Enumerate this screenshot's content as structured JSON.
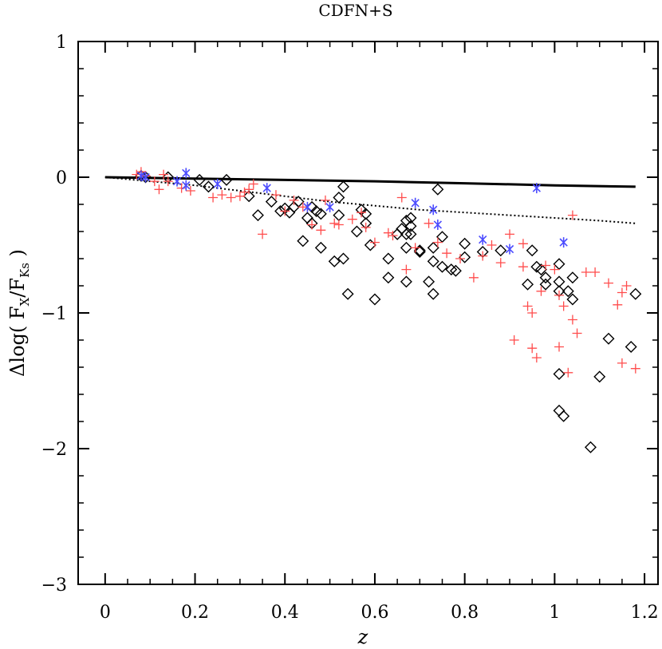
{
  "chart_data": {
    "type": "scatter",
    "title": "CDFN+S",
    "xlabel": "z",
    "ylabel": {
      "prefix": "Δlog( F",
      "sub1": "X",
      "mid": "/F",
      "sub2": "Ks",
      "suffix": " )"
    },
    "xlim": [
      -0.06,
      1.23
    ],
    "ylim": [
      -3,
      1
    ],
    "x_ticks": [
      {
        "value": 0,
        "label": "0"
      },
      {
        "value": 0.2,
        "label": "0.2"
      },
      {
        "value": 0.4,
        "label": "0.4"
      },
      {
        "value": 0.6,
        "label": "0.6"
      },
      {
        "value": 0.8,
        "label": "0.8"
      },
      {
        "value": 1.0,
        "label": "1"
      },
      {
        "value": 1.2,
        "label": "1.2"
      }
    ],
    "y_ticks": [
      {
        "value": 1,
        "label": "1"
      },
      {
        "value": 0,
        "label": "0"
      },
      {
        "value": -1,
        "label": "−1"
      },
      {
        "value": -2,
        "label": "−2"
      },
      {
        "value": -3,
        "label": "−3"
      }
    ],
    "grid": false,
    "legend": "none",
    "curves": [
      {
        "style": "solid",
        "color": "#000000",
        "x": [
          0,
          0.2,
          0.4,
          0.6,
          0.8,
          1.0,
          1.18
        ],
        "y": [
          0,
          -0.01,
          -0.02,
          -0.03,
          -0.045,
          -0.06,
          -0.07
        ]
      },
      {
        "style": "dotted",
        "color": "#000000",
        "x": [
          0,
          0.1,
          0.2,
          0.3,
          0.4,
          0.5,
          0.6,
          0.7,
          0.8,
          0.9,
          1.0,
          1.1,
          1.18
        ],
        "y": [
          0,
          -0.03,
          -0.06,
          -0.1,
          -0.14,
          -0.18,
          -0.21,
          -0.24,
          -0.26,
          -0.28,
          -0.3,
          -0.32,
          -0.34
        ]
      }
    ],
    "series": [
      {
        "marker": "diamond",
        "color": "#000000",
        "points": [
          [
            0.08,
            0.01
          ],
          [
            0.09,
            0.0
          ],
          [
            0.14,
            0.0
          ],
          [
            0.21,
            -0.02
          ],
          [
            0.23,
            -0.07
          ],
          [
            0.27,
            -0.02
          ],
          [
            0.32,
            -0.14
          ],
          [
            0.34,
            -0.28
          ],
          [
            0.37,
            -0.18
          ],
          [
            0.39,
            -0.25
          ],
          [
            0.4,
            -0.23
          ],
          [
            0.41,
            -0.26
          ],
          [
            0.42,
            -0.22
          ],
          [
            0.43,
            -0.18
          ],
          [
            0.44,
            -0.47
          ],
          [
            0.45,
            -0.3
          ],
          [
            0.46,
            -0.22
          ],
          [
            0.46,
            -0.34
          ],
          [
            0.47,
            -0.25
          ],
          [
            0.48,
            -0.27
          ],
          [
            0.48,
            -0.52
          ],
          [
            0.51,
            -0.62
          ],
          [
            0.52,
            -0.28
          ],
          [
            0.52,
            -0.15
          ],
          [
            0.53,
            -0.07
          ],
          [
            0.53,
            -0.6
          ],
          [
            0.54,
            -0.86
          ],
          [
            0.56,
            -0.4
          ],
          [
            0.57,
            -0.24
          ],
          [
            0.58,
            -0.27
          ],
          [
            0.58,
            -0.34
          ],
          [
            0.59,
            -0.5
          ],
          [
            0.6,
            -0.9
          ],
          [
            0.63,
            -0.6
          ],
          [
            0.63,
            -0.74
          ],
          [
            0.65,
            -0.42
          ],
          [
            0.66,
            -0.38
          ],
          [
            0.67,
            -0.32
          ],
          [
            0.67,
            -0.42
          ],
          [
            0.67,
            -0.52
          ],
          [
            0.67,
            -0.77
          ],
          [
            0.68,
            -0.3
          ],
          [
            0.68,
            -0.36
          ],
          [
            0.68,
            -0.42
          ],
          [
            0.7,
            -0.54
          ],
          [
            0.7,
            -0.55
          ],
          [
            0.72,
            -0.77
          ],
          [
            0.73,
            -0.52
          ],
          [
            0.73,
            -0.62
          ],
          [
            0.73,
            -0.86
          ],
          [
            0.74,
            -0.09
          ],
          [
            0.75,
            -0.44
          ],
          [
            0.75,
            -0.66
          ],
          [
            0.77,
            -0.68
          ],
          [
            0.78,
            -0.69
          ],
          [
            0.8,
            -0.49
          ],
          [
            0.8,
            -0.59
          ],
          [
            0.84,
            -0.55
          ],
          [
            0.88,
            -0.54
          ],
          [
            0.94,
            -0.79
          ],
          [
            0.95,
            -0.54
          ],
          [
            0.96,
            -0.66
          ],
          [
            0.97,
            -0.68
          ],
          [
            0.98,
            -0.74
          ],
          [
            0.98,
            -0.79
          ],
          [
            1.01,
            -0.64
          ],
          [
            1.01,
            -0.77
          ],
          [
            1.01,
            -0.84
          ],
          [
            1.01,
            -1.45
          ],
          [
            1.01,
            -1.72
          ],
          [
            1.02,
            -1.76
          ],
          [
            1.03,
            -0.84
          ],
          [
            1.04,
            -0.74
          ],
          [
            1.04,
            -0.9
          ],
          [
            1.08,
            -1.99
          ],
          [
            1.1,
            -1.47
          ],
          [
            1.12,
            -1.19
          ],
          [
            1.17,
            -1.25
          ],
          [
            1.18,
            -0.86
          ]
        ]
      },
      {
        "marker": "plus",
        "color": "#ff4c4c",
        "points": [
          [
            0.07,
            0.02
          ],
          [
            0.08,
            0.04
          ],
          [
            0.09,
            0.01
          ],
          [
            0.11,
            -0.03
          ],
          [
            0.12,
            -0.09
          ],
          [
            0.13,
            0.02
          ],
          [
            0.14,
            -0.03
          ],
          [
            0.17,
            -0.08
          ],
          [
            0.19,
            -0.1
          ],
          [
            0.24,
            -0.15
          ],
          [
            0.26,
            -0.13
          ],
          [
            0.28,
            -0.15
          ],
          [
            0.3,
            -0.14
          ],
          [
            0.31,
            -0.11
          ],
          [
            0.32,
            -0.09
          ],
          [
            0.33,
            -0.05
          ],
          [
            0.35,
            -0.42
          ],
          [
            0.38,
            -0.13
          ],
          [
            0.4,
            -0.25
          ],
          [
            0.42,
            -0.17
          ],
          [
            0.44,
            -0.22
          ],
          [
            0.46,
            -0.35
          ],
          [
            0.48,
            -0.39
          ],
          [
            0.49,
            -0.17
          ],
          [
            0.51,
            -0.34
          ],
          [
            0.52,
            -0.35
          ],
          [
            0.55,
            -0.31
          ],
          [
            0.57,
            -0.26
          ],
          [
            0.58,
            -0.37
          ],
          [
            0.6,
            -0.48
          ],
          [
            0.63,
            -0.41
          ],
          [
            0.64,
            -0.43
          ],
          [
            0.66,
            -0.15
          ],
          [
            0.67,
            -0.68
          ],
          [
            0.69,
            -0.52
          ],
          [
            0.72,
            -0.34
          ],
          [
            0.74,
            -0.48
          ],
          [
            0.76,
            -0.56
          ],
          [
            0.79,
            -0.6
          ],
          [
            0.82,
            -0.74
          ],
          [
            0.84,
            -0.58
          ],
          [
            0.86,
            -0.5
          ],
          [
            0.88,
            -0.63
          ],
          [
            0.9,
            -0.42
          ],
          [
            0.91,
            -1.2
          ],
          [
            0.93,
            -0.49
          ],
          [
            0.93,
            -0.66
          ],
          [
            0.94,
            -0.95
          ],
          [
            0.95,
            -1.0
          ],
          [
            0.95,
            -1.26
          ],
          [
            0.96,
            -1.33
          ],
          [
            0.97,
            -0.84
          ],
          [
            0.98,
            -0.65
          ],
          [
            1.0,
            -0.68
          ],
          [
            1.01,
            -0.87
          ],
          [
            1.01,
            -1.25
          ],
          [
            1.02,
            -0.95
          ],
          [
            1.03,
            -1.44
          ],
          [
            1.04,
            -0.28
          ],
          [
            1.04,
            -1.05
          ],
          [
            1.05,
            -1.15
          ],
          [
            1.07,
            -0.7
          ],
          [
            1.09,
            -0.7
          ],
          [
            1.12,
            -0.78
          ],
          [
            1.14,
            -0.94
          ],
          [
            1.15,
            -0.85
          ],
          [
            1.15,
            -1.37
          ],
          [
            1.16,
            -0.8
          ],
          [
            1.18,
            -1.41
          ]
        ]
      },
      {
        "marker": "asterisk",
        "color": "#4c4cff",
        "points": [
          [
            0.08,
            0.01
          ],
          [
            0.09,
            0.0
          ],
          [
            0.16,
            -0.03
          ],
          [
            0.18,
            0.03
          ],
          [
            0.18,
            -0.06
          ],
          [
            0.25,
            -0.05
          ],
          [
            0.36,
            -0.08
          ],
          [
            0.45,
            -0.22
          ],
          [
            0.5,
            -0.22
          ],
          [
            0.69,
            -0.19
          ],
          [
            0.73,
            -0.24
          ],
          [
            0.74,
            -0.35
          ],
          [
            0.84,
            -0.46
          ],
          [
            0.9,
            -0.53
          ],
          [
            0.96,
            -0.08
          ],
          [
            1.02,
            -0.48
          ]
        ]
      }
    ]
  }
}
